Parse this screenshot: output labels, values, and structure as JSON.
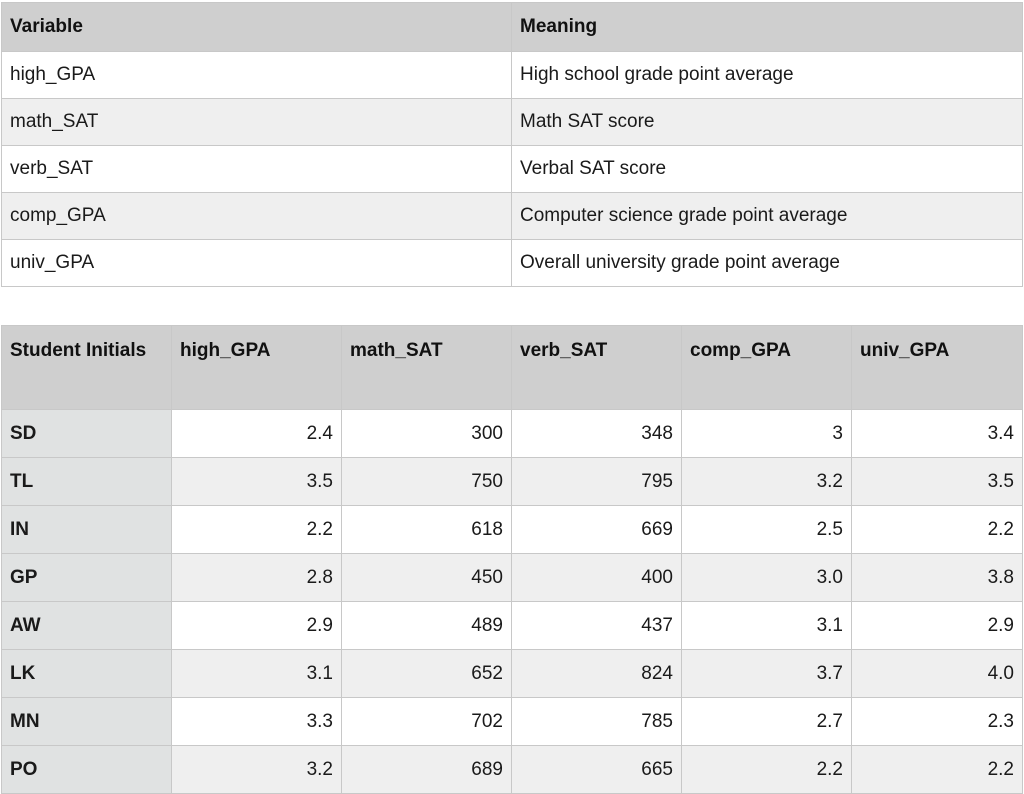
{
  "variables_table": {
    "headers": [
      "Variable",
      "Meaning"
    ],
    "rows": [
      {
        "variable": "high_GPA",
        "meaning": "High school grade point average"
      },
      {
        "variable": "math_SAT",
        "meaning": "Math SAT score"
      },
      {
        "variable": "verb_SAT",
        "meaning": "Verbal SAT score"
      },
      {
        "variable": "comp_GPA",
        "meaning": "Computer science grade point average"
      },
      {
        "variable": "univ_GPA",
        "meaning": "Overall university grade point average"
      }
    ]
  },
  "students_table": {
    "headers": [
      "Student Initials",
      "high_GPA",
      "math_SAT",
      "verb_SAT",
      "comp_GPA",
      "univ_GPA"
    ],
    "rows": [
      {
        "initials": "SD",
        "high_GPA": "2.4",
        "math_SAT": "300",
        "verb_SAT": "348",
        "comp_GPA": "3",
        "univ_GPA": "3.4"
      },
      {
        "initials": "TL",
        "high_GPA": "3.5",
        "math_SAT": "750",
        "verb_SAT": "795",
        "comp_GPA": "3.2",
        "univ_GPA": "3.5"
      },
      {
        "initials": "IN",
        "high_GPA": "2.2",
        "math_SAT": "618",
        "verb_SAT": "669",
        "comp_GPA": "2.5",
        "univ_GPA": "2.2"
      },
      {
        "initials": "GP",
        "high_GPA": "2.8",
        "math_SAT": "450",
        "verb_SAT": "400",
        "comp_GPA": "3.0",
        "univ_GPA": "3.8"
      },
      {
        "initials": "AW",
        "high_GPA": "2.9",
        "math_SAT": "489",
        "verb_SAT": "437",
        "comp_GPA": "3.1",
        "univ_GPA": "2.9"
      },
      {
        "initials": "LK",
        "high_GPA": "3.1",
        "math_SAT": "652",
        "verb_SAT": "824",
        "comp_GPA": "3.7",
        "univ_GPA": "4.0"
      },
      {
        "initials": "MN",
        "high_GPA": "3.3",
        "math_SAT": "702",
        "verb_SAT": "785",
        "comp_GPA": "2.7",
        "univ_GPA": "2.3"
      },
      {
        "initials": "PO",
        "high_GPA": "3.2",
        "math_SAT": "689",
        "verb_SAT": "665",
        "comp_GPA": "2.2",
        "univ_GPA": "2.2"
      }
    ]
  }
}
